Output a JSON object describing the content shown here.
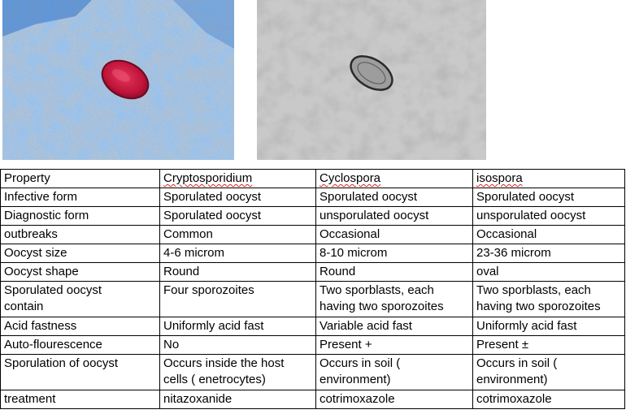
{
  "images": [
    {
      "name": "stained-oocyst-photo",
      "stain_color": "#c0133a",
      "background_color": "#6f9fd6"
    },
    {
      "name": "grayscale-oocyst-photo",
      "stain_color": "#2b2b2b",
      "background_color": "#9a9a9a"
    }
  ],
  "table": {
    "header": {
      "property": "Property",
      "cryptosporidium": "Cryptosporidium",
      "cyclospora": "Cyclospora",
      "isospora": "isospora"
    },
    "rows": [
      {
        "property": [
          "Infective form"
        ],
        "crypto": [
          "Sporulated oocyst"
        ],
        "cyclo": [
          "Sporulated oocyst"
        ],
        "iso": [
          "Sporulated oocyst"
        ]
      },
      {
        "property": [
          "Diagnostic form"
        ],
        "crypto": [
          "Sporulated oocyst"
        ],
        "cyclo": [
          "unsporulated oocyst"
        ],
        "iso": [
          "unsporulated oocyst"
        ]
      },
      {
        "property": [
          "outbreaks"
        ],
        "crypto": [
          "Common"
        ],
        "cyclo": [
          "Occasional"
        ],
        "iso": [
          "Occasional"
        ]
      },
      {
        "property": [
          "Oocyst size"
        ],
        "crypto": [
          "4-6 microm"
        ],
        "cyclo": [
          "8-10 microm"
        ],
        "iso": [
          "23-36 microm"
        ]
      },
      {
        "property": [
          "Oocyst shape"
        ],
        "crypto": [
          "Round"
        ],
        "cyclo": [
          "Round"
        ],
        "iso": [
          "oval"
        ]
      },
      {
        "property": [
          "Sporulated oocyst",
          "contain"
        ],
        "crypto": [
          "Four sporozoites"
        ],
        "cyclo": [
          "Two sporblasts, each",
          "having two sporozoites"
        ],
        "iso": [
          "Two sporblasts, each",
          "having two sporozoites"
        ]
      },
      {
        "property": [
          "Acid fastness"
        ],
        "crypto": [
          "Uniformly acid fast"
        ],
        "cyclo": [
          "Variable acid fast"
        ],
        "iso": [
          "Uniformly acid fast"
        ]
      },
      {
        "property": [
          "Auto-flourescence"
        ],
        "crypto": [
          "No"
        ],
        "cyclo": [
          "Present +"
        ],
        "iso": [
          "Present ±"
        ]
      },
      {
        "property": [
          "Sporulation of oocyst"
        ],
        "crypto": [
          "Occurs inside the host",
          "cells ( enetrocytes)"
        ],
        "cyclo": [
          "Occurs in soil (",
          "environment)"
        ],
        "iso": [
          "Occurs in soil (",
          "environment)"
        ]
      },
      {
        "property": [
          "treatment"
        ],
        "crypto": [
          "nitazoxanide"
        ],
        "cyclo": [
          "cotrimoxazole"
        ],
        "iso": [
          "cotrimoxazole"
        ]
      }
    ]
  }
}
